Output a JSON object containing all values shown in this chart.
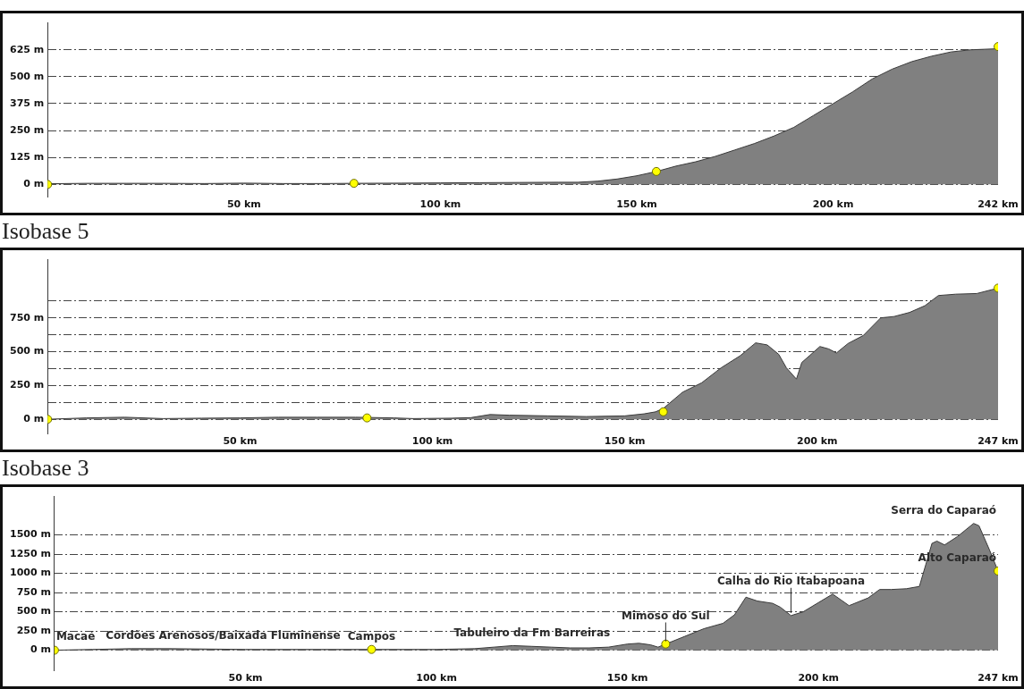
{
  "chart_data": [
    {
      "type": "area",
      "xlim": [
        0,
        242
      ],
      "ylim": [
        -60,
        750
      ],
      "grid": "y",
      "xticks": [
        {
          "value": 50,
          "label": "50 km"
        },
        {
          "value": 100,
          "label": "100 km"
        },
        {
          "value": 150,
          "label": "150 km"
        },
        {
          "value": 200,
          "label": "200 km"
        },
        {
          "value": 242,
          "label": "242 km"
        }
      ],
      "yticks": [
        {
          "value": 0,
          "label": "0 m"
        },
        {
          "value": 125,
          "label": "125 m"
        },
        {
          "value": 250,
          "label": "250 m"
        },
        {
          "value": 375,
          "label": "375 m"
        },
        {
          "value": 500,
          "label": "500 m"
        },
        {
          "value": 625,
          "label": "625 m"
        }
      ],
      "series": [
        {
          "color": "#808080",
          "x": [
            0,
            10,
            20,
            30,
            40,
            50,
            60,
            70,
            78,
            90,
            100,
            110,
            120,
            130,
            135,
            140,
            145,
            150,
            155,
            160,
            165,
            170,
            175,
            180,
            185,
            190,
            195,
            200,
            205,
            210,
            215,
            220,
            225,
            230,
            235,
            242
          ],
          "values": [
            3,
            5,
            5,
            5,
            4,
            6,
            4,
            4,
            5,
            6,
            7,
            8,
            9,
            10,
            10,
            15,
            25,
            40,
            60,
            85,
            105,
            130,
            160,
            190,
            225,
            265,
            320,
            375,
            430,
            490,
            535,
            570,
            595,
            615,
            625,
            630
          ]
        },
        {
          "type": "scatter",
          "color": "#ffff00",
          "marker": "circle",
          "x": [
            0,
            78,
            155,
            242
          ],
          "values": [
            0,
            5,
            60,
            640
          ]
        }
      ]
    },
    {
      "type": "area",
      "title": "Isobase 5",
      "xlim": [
        0,
        247
      ],
      "ylim": [
        -110,
        1180
      ],
      "grid": "y",
      "xticks": [
        {
          "value": 50,
          "label": "50 km"
        },
        {
          "value": 100,
          "label": "100 km"
        },
        {
          "value": 150,
          "label": "150 km"
        },
        {
          "value": 200,
          "label": "200 km"
        },
        {
          "value": 247,
          "label": "247 km"
        }
      ],
      "yticks": [
        {
          "value": 0,
          "label": "0 m"
        },
        {
          "value": 125,
          "label": null
        },
        {
          "value": 250,
          "label": "250 m"
        },
        {
          "value": 375,
          "label": null
        },
        {
          "value": 500,
          "label": "500 m"
        },
        {
          "value": 625,
          "label": null
        },
        {
          "value": 750,
          "label": "750 m"
        },
        {
          "value": 875,
          "label": null
        }
      ],
      "series": [
        {
          "color": "#808080",
          "x": [
            0,
            10,
            20,
            30,
            40,
            50,
            60,
            70,
            80,
            90,
            95,
            105,
            110,
            115,
            120,
            130,
            140,
            150,
            155,
            158,
            160,
            165,
            170,
            175,
            180,
            184,
            187,
            190,
            192,
            194.6,
            196,
            198,
            200.7,
            203,
            205,
            208,
            212,
            216.5,
            220,
            224,
            228,
            231.5,
            236,
            241.5,
            247
          ],
          "values": [
            0,
            10,
            15,
            5,
            8,
            10,
            15,
            15,
            15,
            10,
            5,
            8,
            12,
            35,
            30,
            25,
            20,
            25,
            40,
            55,
            80,
            200,
            270,
            380,
            470,
            565,
            550,
            480,
            380,
            297,
            420,
            470,
            538,
            520,
            490,
            560,
            620,
            750,
            760,
            790,
            840,
            915,
            925,
            930,
            970
          ]
        },
        {
          "type": "scatter",
          "color": "#ffff00",
          "marker": "circle",
          "x": [
            0,
            83,
            160,
            247
          ],
          "values": [
            0,
            10,
            55,
            970
          ]
        }
      ]
    },
    {
      "type": "area",
      "title": "Isobase 3",
      "xlim": [
        0,
        247
      ],
      "ylim": [
        -270,
        2000
      ],
      "grid": "y",
      "xticks": [
        {
          "value": 50,
          "label": "50 km"
        },
        {
          "value": 100,
          "label": "100 km"
        },
        {
          "value": 150,
          "label": "150 km"
        },
        {
          "value": 200,
          "label": "200 km"
        },
        {
          "value": 247,
          "label": "247 km"
        }
      ],
      "yticks": [
        {
          "value": 0,
          "label": "0 m"
        },
        {
          "value": 250,
          "label": "250 m"
        },
        {
          "value": 500,
          "label": "500 m"
        },
        {
          "value": 750,
          "label": "750 m"
        },
        {
          "value": 1000,
          "label": "1000 m"
        },
        {
          "value": 1250,
          "label": "1250 m"
        },
        {
          "value": 1500,
          "label": "1500 m"
        }
      ],
      "annotations": [
        {
          "text": "Macaé",
          "x": 0,
          "y": 0
        },
        {
          "text": "Cordões Arenosos/Baixada Fluminense",
          "x": 30,
          "y": 20
        },
        {
          "text": "Campos",
          "x": 83,
          "y": 10
        },
        {
          "text": "Tabuleiro da Fm Barreiras",
          "x": 125,
          "y": 50
        },
        {
          "text": "Mimoso do Sul",
          "x": 160,
          "y": 80
        },
        {
          "text": "Calha do Rio Itabapoana",
          "x": 192.8,
          "y": 450
        },
        {
          "text": "Serra do Caparaó",
          "x": 240.6,
          "y": 1650
        },
        {
          "text": "Alto Caparaó",
          "x": 247,
          "y": 1030
        }
      ],
      "series": [
        {
          "color": "#808080",
          "x": [
            0,
            10,
            20,
            30,
            50,
            70,
            83,
            100,
            110,
            115,
            120,
            125,
            130,
            135,
            140,
            145,
            150,
            153,
            156,
            158,
            160,
            165,
            170,
            175,
            178,
            181,
            184,
            188,
            190,
            192.8,
            196,
            200,
            203.7,
            206,
            208,
            213,
            216,
            219,
            223,
            226.4,
            228,
            229.7,
            231,
            233,
            236.4,
            240.6,
            242,
            244.8,
            247
          ],
          "values": [
            0,
            10,
            20,
            20,
            10,
            10,
            10,
            10,
            20,
            40,
            60,
            50,
            40,
            30,
            30,
            40,
            80,
            90,
            70,
            40,
            80,
            180,
            280,
            350,
            460,
            690,
            640,
            610,
            560,
            450,
            500,
            620,
            730,
            650,
            580,
            680,
            790,
            790,
            800,
            830,
            1100,
            1390,
            1420,
            1370,
            1480,
            1650,
            1620,
            1300,
            1030
          ]
        },
        {
          "type": "scatter",
          "color": "#ffff00",
          "marker": "circle",
          "x": [
            0,
            83,
            160,
            247
          ],
          "values": [
            0,
            10,
            80,
            1030
          ]
        }
      ]
    }
  ]
}
